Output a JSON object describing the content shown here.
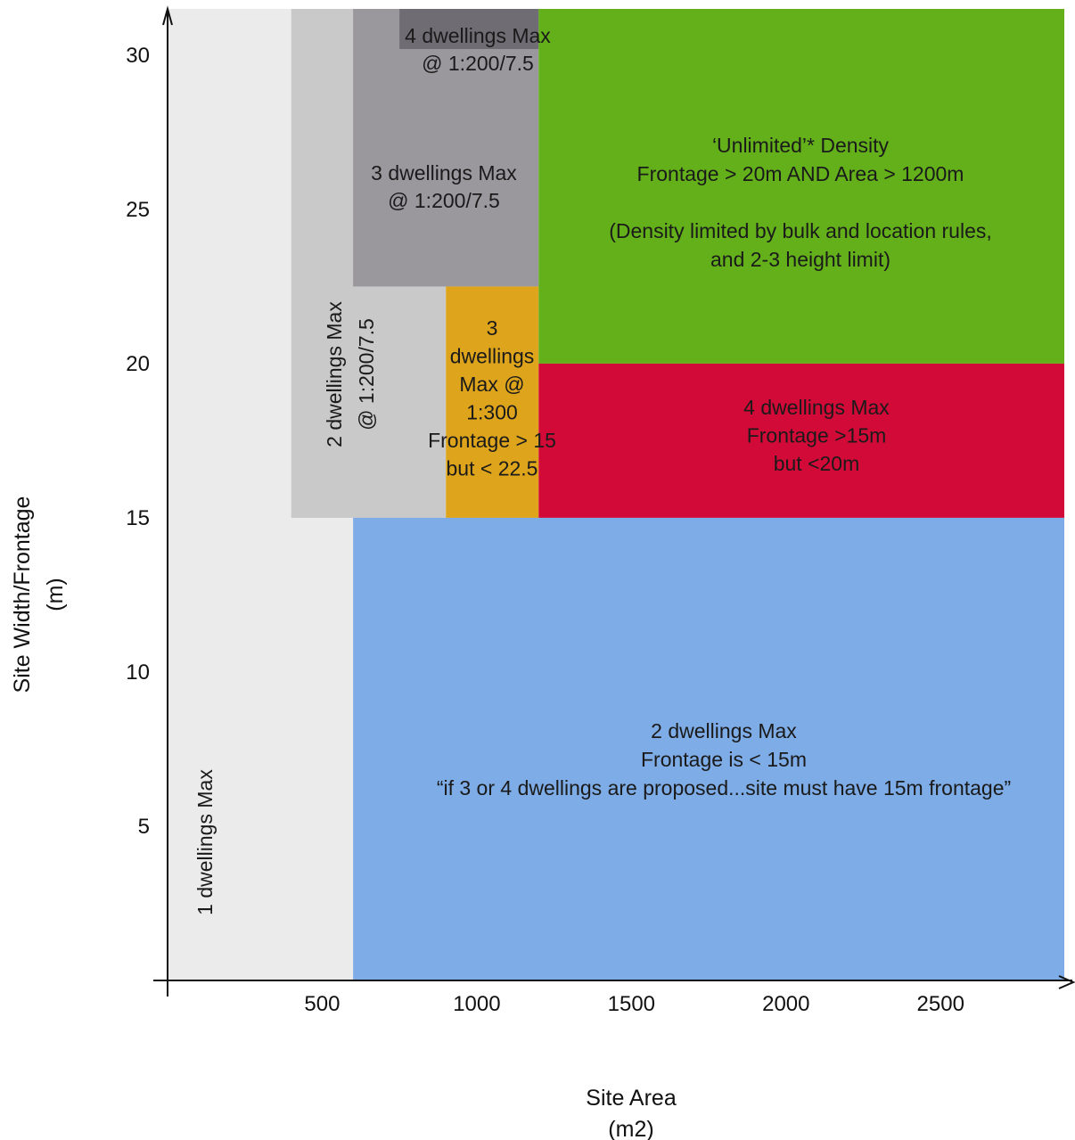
{
  "chart_data": {
    "type": "area",
    "xlabel": [
      "Site Area",
      "(m2)"
    ],
    "ylabel": [
      "Site Width/Frontage",
      "(m)"
    ],
    "x_ticks": [
      500,
      1000,
      1500,
      2000,
      2500
    ],
    "y_ticks": [
      5,
      10,
      15,
      20,
      25,
      30
    ],
    "xlim": [
      0,
      2900
    ],
    "ylim": [
      0,
      31.5
    ],
    "zones": [
      {
        "name": "1 dwellings max",
        "x": [
          0,
          600
        ],
        "y": [
          0,
          31.5
        ],
        "color": "#ebebeb",
        "label": [
          "1 dwellings Max"
        ],
        "rotate": true
      },
      {
        "name": "2 dwellings max 1:200",
        "x": [
          400,
          900
        ],
        "y": [
          15,
          31.5
        ],
        "color": "#c9c9c9",
        "label": [
          "2 dwellings Max",
          "@ 1:200/7.5"
        ],
        "rotate": true
      },
      {
        "name": "3 dwellings max 1:200",
        "x": [
          600,
          1200
        ],
        "y": [
          22.5,
          31.5
        ],
        "color": "#9a989d",
        "label": [
          "3 dwellings Max",
          "@ 1:200/7.5"
        ],
        "rotate": false
      },
      {
        "name": "4 dwellings max 1:200",
        "x": [
          750,
          1200
        ],
        "y": [
          30.2,
          31.5
        ],
        "color": "#6f6c74",
        "label": [
          "4 dwellings Max",
          "@ 1:200/7.5"
        ],
        "rotate": false
      },
      {
        "name": "3 dwellings max 1:300",
        "x": [
          900,
          1200
        ],
        "y": [
          15,
          22.5
        ],
        "color": "#dea51c",
        "label": [
          "3",
          "dwellings",
          "Max @",
          "1:300",
          "Frontage > 15",
          "but < 22.5"
        ],
        "rotate": false
      },
      {
        "name": "unlimited density",
        "x": [
          1200,
          2900
        ],
        "y": [
          20,
          31.5
        ],
        "color": "#63b01b",
        "label": [
          "‘Unlimited’* Density",
          "Frontage > 20m AND Area > 1200m",
          "",
          "(Density limited by bulk and location rules,",
          "and 2-3 height limit)"
        ],
        "rotate": false
      },
      {
        "name": "4 dwellings max frontage",
        "x": [
          1200,
          2900
        ],
        "y": [
          15,
          20
        ],
        "color": "#d20a37",
        "label": [
          "4 dwellings Max",
          "Frontage >15m",
          "but <20m"
        ],
        "rotate": false
      },
      {
        "name": "2 dwellings max frontage",
        "x": [
          600,
          2900
        ],
        "y": [
          0,
          15
        ],
        "color": "#7eace6",
        "label": [
          "2 dwellings Max",
          "Frontage is < 15m",
          "“if 3 or 4 dwellings are proposed...site must have 15m frontage”"
        ],
        "rotate": false
      }
    ]
  }
}
